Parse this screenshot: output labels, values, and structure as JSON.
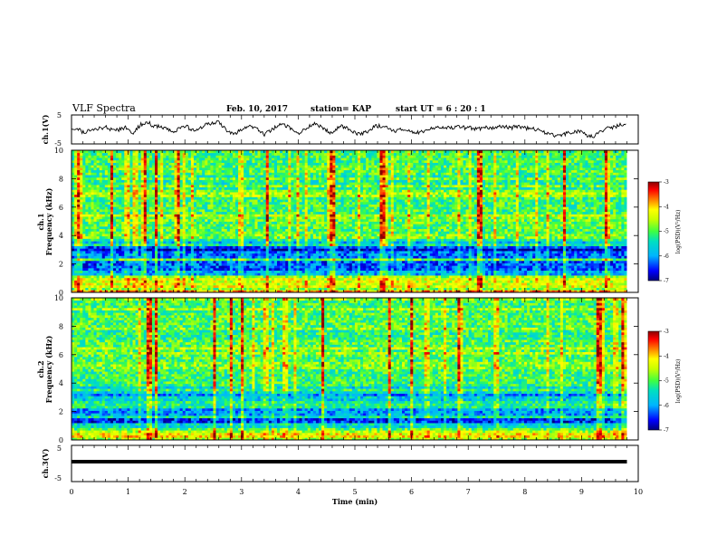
{
  "header": {
    "title": "VLF Spectra",
    "date": "Feb. 10, 2017",
    "station": "station= KAP",
    "start": "start  UT =   6  : 20 : 1"
  },
  "chart_data": [
    {
      "type": "line",
      "name": "ch1-waveform",
      "ylabel": "ch.1(V)",
      "ylim": [
        -5,
        5
      ],
      "yticks": [
        "5",
        "-5"
      ],
      "xlim": [
        0,
        10
      ],
      "x_data_end": 9.8,
      "values": [
        0.6,
        -0.4,
        0.2,
        -1.0,
        -0.6,
        0.1,
        0.0,
        0.5,
        0.4,
        0.8,
        -0.1,
        0.2,
        -0.2,
        0.2,
        0.7,
        -0.6,
        -1.2,
        0.4,
        1.7,
        2.1,
        2.4,
        1.3,
        0.9,
        1.1,
        0.5,
        0.1,
        -0.7,
        -0.3,
        0.6,
        0.5,
        0.8,
        -0.1,
        -0.4,
        0.2,
        0.7,
        1.8,
        1.9,
        2.2,
        2.6,
        1.4,
        0.0,
        -1.2,
        -1.7,
        -1.0,
        -0.4,
        0.8,
        1.6,
        1.0,
        0.1,
        -0.6,
        -1.7,
        -0.8,
        0.1,
        0.8,
        1.6,
        2.0,
        1.0,
        0.0,
        -1.0,
        -1.4,
        -0.6,
        0.2,
        1.3,
        1.8,
        1.5,
        0.7,
        -0.3,
        -1.3,
        -0.5,
        0.3,
        1.1,
        0.8,
        -0.2,
        -0.9,
        -1.5,
        -1.8,
        -1.2,
        -0.4,
        0.5,
        1.0,
        1.2,
        0.8,
        0.3,
        -0.2,
        -0.4,
        -0.3,
        0.1,
        -0.3,
        -0.5,
        -0.8,
        -0.9,
        -0.8,
        -0.4,
        0.1,
        0.6,
        1.1,
        1.0,
        0.8,
        0.5,
        0.6,
        1.0,
        0.8,
        0.6,
        0.6,
        0.4,
        0.2,
        0.4,
        0.9,
        0.6,
        0.1,
        0.5,
        0.8,
        1.0,
        0.8,
        0.6,
        0.9,
        1.0,
        0.6,
        0.3,
        0.5,
        0.2,
        0.0,
        -0.4,
        -1.2,
        -1.8,
        -2.1,
        -2.2,
        -1.9,
        -1.5,
        -1.2,
        -0.8,
        -0.7,
        -1.0,
        -1.5,
        -2.2,
        -2.6,
        -1.6,
        -0.8,
        -0.4,
        0.3,
        0.6,
        1.0,
        1.6,
        1.8,
        2.1
      ]
    },
    {
      "type": "heatmap",
      "name": "ch1-spectrogram",
      "ylabel": "ch.1\nFrequency (kHz)",
      "ylabel_lines": [
        "ch.1",
        "Frequency (kHz)"
      ],
      "yticks": [
        "0",
        "2",
        "4",
        "6",
        "8",
        "10"
      ],
      "ylim": [
        0,
        10
      ],
      "xlim": [
        0,
        10
      ],
      "x_data_end": 9.8,
      "base_rows_khz": [
        [
          0,
          0.25,
          -4.3
        ],
        [
          0.25,
          0.55,
          -4.8
        ],
        [
          0.55,
          0.95,
          -4.4
        ],
        [
          0.95,
          1.25,
          -5.2
        ],
        [
          1.25,
          1.6,
          -5.9
        ],
        [
          1.6,
          2.2,
          -6.3
        ],
        [
          2.2,
          2.5,
          -5.0
        ],
        [
          2.5,
          2.85,
          -6.2
        ],
        [
          2.85,
          3.3,
          -6.8
        ],
        [
          3.3,
          3.6,
          -5.8
        ],
        [
          3.6,
          4.2,
          -5.3
        ],
        [
          4.2,
          5.0,
          -5.0
        ],
        [
          5.0,
          5.4,
          -4.9
        ],
        [
          5.4,
          5.6,
          -4.5
        ],
        [
          5.6,
          7.0,
          -5.1
        ],
        [
          7.0,
          8.3,
          -5.3
        ],
        [
          8.3,
          9.0,
          -5.0
        ],
        [
          9.0,
          10.0,
          -5.1
        ]
      ],
      "colorbar": {
        "ticks": [
          "-3",
          "-4",
          "-5",
          "-6",
          "-7"
        ],
        "label": "log(PSD)(V²/Hz)",
        "range": [
          -7,
          -3
        ]
      }
    },
    {
      "type": "heatmap",
      "name": "ch2-spectrogram",
      "ylabel": "ch.2\nFrequency (kHz)",
      "ylabel_lines": [
        "ch.2",
        "Frequency (kHz)"
      ],
      "yticks": [
        "0",
        "2",
        "4",
        "6",
        "8",
        "10"
      ],
      "ylim": [
        0,
        10
      ],
      "xlim": [
        0,
        10
      ],
      "x_data_end": 9.8,
      "base_rows_khz": [
        [
          0,
          0.3,
          -4.6
        ],
        [
          0.3,
          0.6,
          -4.2
        ],
        [
          0.6,
          0.9,
          -5.0
        ],
        [
          0.9,
          1.15,
          -5.6
        ],
        [
          1.15,
          1.5,
          -6.5
        ],
        [
          1.5,
          1.8,
          -5.4
        ],
        [
          1.8,
          2.3,
          -6.0
        ],
        [
          2.3,
          2.7,
          -5.3
        ],
        [
          2.7,
          3.2,
          -6.1
        ],
        [
          3.2,
          3.9,
          -5.6
        ],
        [
          3.9,
          5.0,
          -5.1
        ],
        [
          5.0,
          5.6,
          -4.8
        ],
        [
          5.6,
          7.0,
          -5.0
        ],
        [
          7.0,
          8.0,
          -5.2
        ],
        [
          8.0,
          9.0,
          -5.0
        ],
        [
          9.0,
          10.0,
          -5.1
        ]
      ],
      "colorbar": {
        "ticks": [
          "-3",
          "-4",
          "-5",
          "-6",
          "-7"
        ],
        "label": "log(PSD)(V²/Hz)",
        "range": [
          -7,
          -3
        ]
      }
    },
    {
      "type": "line",
      "name": "ch3-waveform",
      "ylabel": "ch.3(V)",
      "ylim": [
        -5,
        5
      ],
      "yticks": [
        "5",
        "-5"
      ],
      "xlim": [
        0,
        10
      ],
      "x_data_end": 9.8,
      "constant_value": 0.5
    }
  ],
  "xaxis": {
    "label": "Time (min)",
    "ticks": [
      "0",
      "1",
      "2",
      "3",
      "4",
      "5",
      "6",
      "7",
      "8",
      "9",
      "10"
    ],
    "range": [
      0,
      10
    ]
  },
  "colors": {
    "colormap": [
      "#00007a",
      "#0000ff",
      "#00b4ff",
      "#00e0c0",
      "#40ff40",
      "#c8ff00",
      "#ffff00",
      "#ff8000",
      "#ff0000",
      "#8a0000"
    ]
  }
}
